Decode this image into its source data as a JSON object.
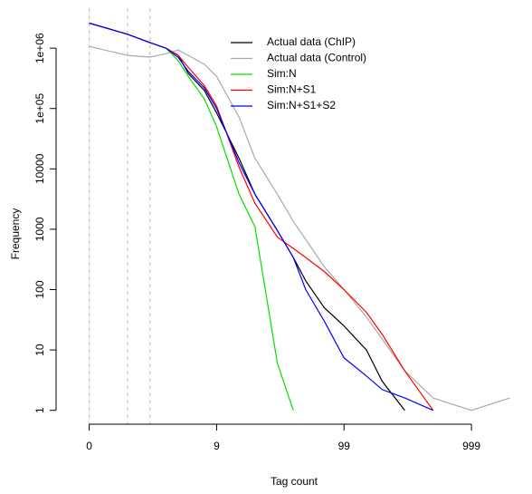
{
  "chart_data": {
    "type": "line",
    "x_label": "Tag count",
    "y_label": "Frequency",
    "xscale": "log1p",
    "ylog": true,
    "xlim": [
      -0.45,
      2985
    ],
    "ylim": [
      0.7,
      4600000
    ],
    "xticks": [
      0,
      9,
      99,
      999
    ],
    "yticks": [
      1,
      10,
      100,
      1000,
      10000,
      {
        "value": 100000,
        "label": "1e+05"
      },
      {
        "value": 1000000,
        "label": "1e+06"
      }
    ],
    "vlines": [
      0,
      1,
      2
    ],
    "legend": "top",
    "x": [
      0,
      1,
      2,
      3,
      4,
      5,
      7,
      9,
      14,
      19,
      29,
      39,
      49,
      69,
      99,
      149,
      199,
      299,
      499,
      999,
      1999
    ],
    "series": [
      {
        "name": "Actual data (ChIP)",
        "color": "#000000",
        "values": [
          2600000,
          1700000,
          1230000,
          1000000,
          760000,
          380000,
          200000,
          85000,
          15000,
          3800,
          950,
          340,
          140,
          50,
          25,
          10,
          3,
          1,
          null,
          null,
          null
        ]
      },
      {
        "name": "Actual data (Control)",
        "color": "#aaaaaa",
        "values": [
          1070000,
          760000,
          710000,
          810000,
          930000,
          760000,
          540000,
          340000,
          72000,
          15000,
          3800,
          1350,
          680,
          240,
          100,
          35,
          15,
          4.5,
          1.6,
          1,
          1.6
        ]
      },
      {
        "name": "Sim:N",
        "color": "#00e000",
        "values": [
          2600000,
          1700000,
          1230000,
          1000000,
          620000,
          340000,
          145000,
          50000,
          3800,
          1100,
          6,
          1,
          null,
          null,
          null,
          null,
          null,
          null,
          null,
          null,
          null
        ]
      },
      {
        "name": "Sim:N+S1",
        "color": "#ff0000",
        "values": [
          2600000,
          1700000,
          1230000,
          1000000,
          760000,
          480000,
          240000,
          110000,
          10700,
          2700,
          740,
          480,
          340,
          200,
          100,
          42,
          18,
          4.5,
          1,
          null,
          null
        ]
      },
      {
        "name": "Sim:N+S1+S2",
        "color": "#0000ff",
        "values": [
          2600000,
          1700000,
          1230000,
          1000000,
          700000,
          410000,
          220000,
          100000,
          12600,
          3800,
          950,
          340,
          100,
          30,
          7.4,
          3.7,
          2.2,
          1.6,
          1,
          null,
          null
        ]
      }
    ]
  }
}
